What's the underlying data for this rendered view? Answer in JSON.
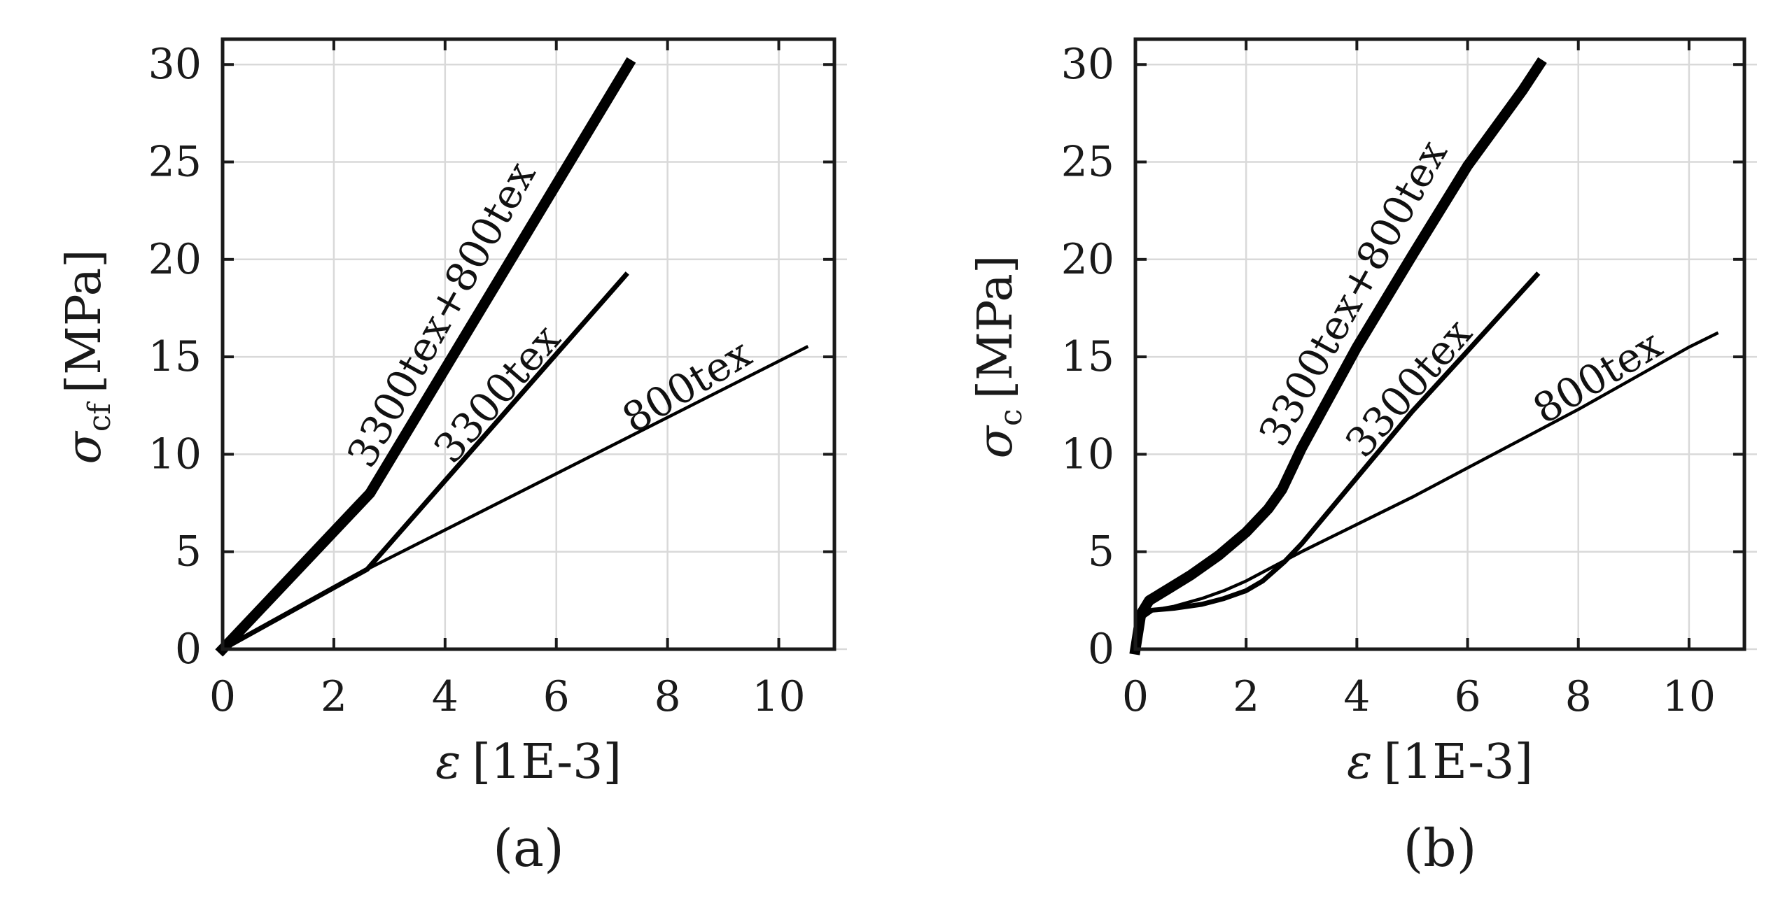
{
  "chart_data": [
    {
      "type": "line",
      "panel_label": "(a)",
      "xlabel": "ε [1E-3]",
      "xlabel_symbol": "ε",
      "xlabel_unit": "[1E-3]",
      "ylabel_symbol": "σ",
      "ylabel_sub": "cf",
      "ylabel_unit": "[MPa]",
      "xlim": [
        0,
        11
      ],
      "ylim": [
        0,
        31.3
      ],
      "x_ticks": [
        0,
        2,
        4,
        6,
        8,
        10
      ],
      "y_ticks": [
        0,
        5,
        10,
        15,
        20,
        25,
        30
      ],
      "grid": true,
      "series": [
        {
          "name": "3300tex+800tex",
          "x": [
            0,
            2.65,
            7.3
          ],
          "y": [
            0,
            8.0,
            30.0
          ],
          "weight": "thick"
        },
        {
          "name": "3300tex",
          "x": [
            0,
            2.6,
            7.25
          ],
          "y": [
            0,
            4.1,
            19.2
          ],
          "weight": "medium"
        },
        {
          "name": "800tex",
          "x": [
            0,
            2.6,
            10.5
          ],
          "y": [
            0,
            4.1,
            15.5
          ],
          "weight": "thin"
        }
      ]
    },
    {
      "type": "line",
      "panel_label": "(b)",
      "xlabel": "ε [1E-3]",
      "xlabel_symbol": "ε",
      "xlabel_unit": "[1E-3]",
      "ylabel_symbol": "σ",
      "ylabel_sub": "c",
      "ylabel_unit": "[MPa]",
      "xlim": [
        0,
        11
      ],
      "ylim": [
        0,
        31.3
      ],
      "x_ticks": [
        0,
        2,
        4,
        6,
        8,
        10
      ],
      "y_ticks": [
        0,
        5,
        10,
        15,
        20,
        25,
        30
      ],
      "grid": true,
      "series": [
        {
          "name": "3300tex+800tex",
          "x": [
            0,
            0.1,
            0.25,
            0.6,
            1.0,
            1.5,
            2.0,
            2.4,
            2.65,
            3.0,
            4.0,
            5.0,
            6.0,
            7.0,
            7.3
          ],
          "y": [
            0,
            1.8,
            2.5,
            3.1,
            3.8,
            4.8,
            6.0,
            7.2,
            8.2,
            10.3,
            15.5,
            20.2,
            24.8,
            28.7,
            30.0
          ],
          "weight": "thick"
        },
        {
          "name": "3300tex",
          "x": [
            0,
            0.1,
            0.3,
            0.7,
            1.2,
            1.6,
            2.0,
            2.3,
            2.7,
            3.0,
            4.0,
            5.0,
            6.0,
            6.8,
            7.25
          ],
          "y": [
            0,
            1.6,
            2.0,
            2.1,
            2.3,
            2.6,
            3.0,
            3.5,
            4.5,
            5.4,
            8.8,
            12.2,
            15.3,
            17.8,
            19.2
          ],
          "weight": "medium"
        },
        {
          "name": "800tex",
          "x": [
            0,
            0.1,
            0.3,
            0.7,
            1.2,
            1.6,
            2.0,
            2.6,
            3.0,
            4.0,
            5.0,
            6.0,
            7.0,
            8.0,
            9.0,
            10.0,
            10.5
          ],
          "y": [
            0,
            1.6,
            2.0,
            2.2,
            2.6,
            3.0,
            3.5,
            4.4,
            5.0,
            6.4,
            7.8,
            9.3,
            10.8,
            12.3,
            13.9,
            15.5,
            16.2
          ],
          "weight": "thin"
        }
      ]
    }
  ]
}
